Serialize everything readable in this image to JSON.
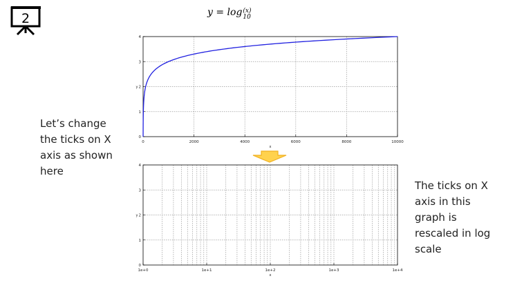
{
  "slide": {
    "number": "2",
    "title_prefix": "y = log",
    "title_sub": "10",
    "title_sup": "(x)",
    "note_left": [
      "Let’s change",
      "the ticks on X",
      "axis as shown",
      "here"
    ],
    "note_right": [
      "The ticks on X",
      "axis in this",
      "graph is",
      "rescaled in log",
      "scale"
    ]
  },
  "icons": {
    "badge": "presentation-board-icon",
    "arrow": "down-arrow-icon"
  },
  "colors": {
    "curve": "#2020e0",
    "grid": "#9a9a9a",
    "arrow_fill": "#ffd24d",
    "arrow_stroke": "#f0b020"
  },
  "chart_data": [
    {
      "type": "line",
      "xlabel": "x",
      "ylabel": "y",
      "xlim": [
        0,
        10000
      ],
      "ylim": [
        0,
        4
      ],
      "xscale": "linear",
      "grid": true,
      "xticks": [
        0,
        2000,
        4000,
        6000,
        8000,
        10000
      ],
      "xtick_labels": [
        "0",
        "2000",
        "4000",
        "6000",
        "8000",
        "10000"
      ],
      "yticks": [
        0,
        1,
        2,
        3,
        4
      ],
      "ytick_labels": [
        "0",
        "1",
        "2",
        "3",
        "4"
      ],
      "series": [
        {
          "function": "log10(x)",
          "x": [
            1,
            2,
            5,
            10,
            20,
            50,
            100,
            200,
            500,
            1000,
            2000,
            3000,
            4000,
            5000,
            6000,
            7000,
            8000,
            9000,
            10000
          ],
          "y": [
            0,
            0.301,
            0.699,
            1,
            1.301,
            1.699,
            2,
            2.301,
            2.699,
            3,
            3.301,
            3.477,
            3.602,
            3.699,
            3.778,
            3.845,
            3.903,
            3.954,
            4
          ]
        }
      ]
    },
    {
      "type": "line",
      "xlabel": "x",
      "ylabel": "y",
      "xlim": [
        1,
        10000
      ],
      "ylim": [
        0,
        4
      ],
      "xscale": "log",
      "grid": true,
      "xticks": [
        1,
        10,
        100,
        1000,
        10000
      ],
      "xtick_labels": [
        "1e+0",
        "1e+1",
        "1e+2",
        "1e+3",
        "1e+4"
      ],
      "yticks": [
        0,
        1,
        2,
        3,
        4
      ],
      "ytick_labels": [
        "0",
        "1",
        "2",
        "3",
        "4"
      ],
      "series": []
    }
  ]
}
